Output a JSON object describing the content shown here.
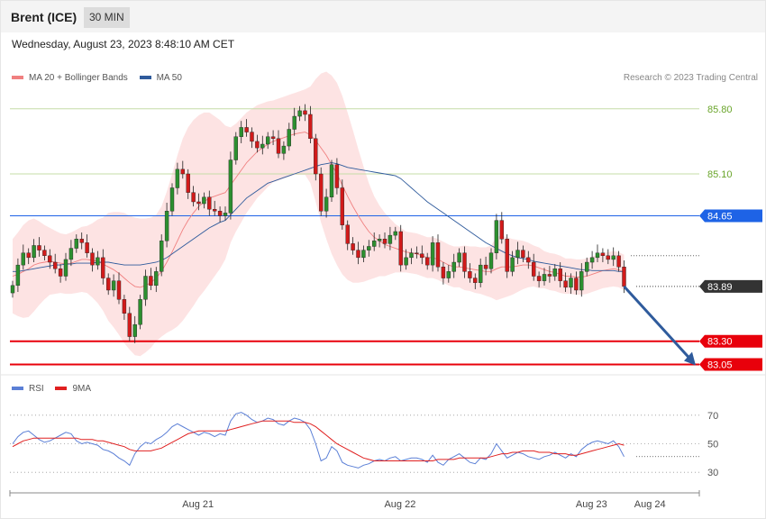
{
  "header": {
    "title": "Brent (ICE)",
    "timeframe": "30 MIN"
  },
  "datetime": "Wednesday, August 23, 2023 8:48:10 AM CET",
  "legend": {
    "items": [
      {
        "label": "MA 20 + Bollinger Bands",
        "color": "#f08080"
      },
      {
        "label": "MA 50",
        "color": "#2f5b9c"
      }
    ]
  },
  "credit": "Research © 2023 Trading Central",
  "rsi_legend": {
    "items": [
      {
        "label": "RSI",
        "color": "#5b7fd6"
      },
      {
        "label": "9MA",
        "color": "#e02020"
      }
    ]
  },
  "chart_data": [
    {
      "type": "candlestick",
      "ylim": [
        82.9,
        86.05
      ],
      "x_ticks": [
        {
          "label": "Aug 21",
          "index": 33
        },
        {
          "label": "Aug 22",
          "index": 71
        },
        {
          "label": "Aug 23",
          "index": 107
        },
        {
          "label": "Aug 24",
          "index": 118
        }
      ],
      "levels": [
        {
          "value": 85.8,
          "label": "85.80",
          "color": "#6aa52b",
          "line": "#c5dca7",
          "style": "text"
        },
        {
          "value": 85.1,
          "label": "85.10",
          "color": "#6aa52b",
          "line": "#c5dca7",
          "style": "text"
        },
        {
          "value": 84.65,
          "label": "84.65",
          "color": "#1e63e6",
          "line": "#1e63e6",
          "style": "badge"
        },
        {
          "value": 83.89,
          "label": "83.89",
          "color": "#333333",
          "line": "#555555",
          "style": "badge-dark"
        },
        {
          "value": 83.3,
          "label": "83.30",
          "color": "#e8000b",
          "line": "#e8000b",
          "style": "badge"
        },
        {
          "value": 83.05,
          "label": "83.05",
          "color": "#e8000b",
          "line": "#e8000b",
          "style": "badge"
        }
      ],
      "closes": [
        83.9,
        84.12,
        84.25,
        84.2,
        84.33,
        84.28,
        84.22,
        84.15,
        84.08,
        84.0,
        84.18,
        84.3,
        84.4,
        84.36,
        84.25,
        84.12,
        84.2,
        83.98,
        83.85,
        83.95,
        83.75,
        83.6,
        83.35,
        83.48,
        83.75,
        84.0,
        83.9,
        84.05,
        84.38,
        84.7,
        84.95,
        85.15,
        85.1,
        84.9,
        84.8,
        84.78,
        84.85,
        84.72,
        84.7,
        84.65,
        84.68,
        85.25,
        85.5,
        85.6,
        85.55,
        85.45,
        85.38,
        85.42,
        85.5,
        85.48,
        85.32,
        85.4,
        85.58,
        85.72,
        85.78,
        85.74,
        85.48,
        85.1,
        84.7,
        84.85,
        85.2,
        84.95,
        84.55,
        84.35,
        84.28,
        84.2,
        84.28,
        84.32,
        84.38,
        84.4,
        84.35,
        84.44,
        84.48,
        84.12,
        84.2,
        84.25,
        84.24,
        84.2,
        84.12,
        84.36,
        84.1,
        83.98,
        84.05,
        84.15,
        84.25,
        84.05,
        83.98,
        83.93,
        84.12,
        84.08,
        84.25,
        84.6,
        84.4,
        84.05,
        84.2,
        84.28,
        84.2,
        84.15,
        84.0,
        83.95,
        84.02,
        84.0,
        84.08,
        83.95,
        83.88,
        83.98,
        83.85,
        84.05,
        84.15,
        84.2,
        84.25,
        84.22,
        84.18,
        84.22,
        84.1,
        83.89
      ],
      "bb_mid": [
        84.0,
        84.02,
        84.05,
        84.08,
        84.12,
        84.14,
        84.15,
        84.16,
        84.15,
        84.14,
        84.13,
        84.14,
        84.16,
        84.18,
        84.18,
        84.17,
        84.16,
        84.13,
        84.1,
        84.07,
        84.03,
        83.98,
        83.93,
        83.89,
        83.88,
        83.9,
        83.93,
        83.98,
        84.05,
        84.15,
        84.26,
        84.38,
        84.5,
        84.6,
        84.68,
        84.75,
        84.8,
        84.84,
        84.86,
        84.88,
        84.9,
        84.98,
        85.06,
        85.14,
        85.22,
        85.28,
        85.34,
        85.38,
        85.42,
        85.45,
        85.47,
        85.49,
        85.51,
        85.53,
        85.54,
        85.55,
        85.52,
        85.46,
        85.38,
        85.3,
        85.2,
        85.1,
        84.98,
        84.86,
        84.75,
        84.65,
        84.56,
        84.48,
        84.42,
        84.38,
        84.34,
        84.32,
        84.3,
        84.28,
        84.26,
        84.25,
        84.24,
        84.22,
        84.2,
        84.2,
        84.18,
        84.15,
        84.12,
        84.1,
        84.1,
        84.09,
        84.08,
        84.07,
        84.06,
        84.05,
        84.05,
        84.08,
        84.1,
        84.1,
        84.1,
        84.11,
        84.12,
        84.12,
        84.11,
        84.09,
        84.07,
        84.05,
        84.04,
        84.02,
        84.0,
        84.0,
        83.99,
        83.99,
        84.0,
        84.02,
        84.04,
        84.06,
        84.07,
        84.08,
        84.07,
        84.04
      ],
      "bb_halfwidth": [
        0.4,
        0.45,
        0.5,
        0.52,
        0.5,
        0.45,
        0.4,
        0.36,
        0.34,
        0.32,
        0.32,
        0.33,
        0.34,
        0.35,
        0.36,
        0.4,
        0.45,
        0.5,
        0.58,
        0.62,
        0.66,
        0.7,
        0.72,
        0.74,
        0.74,
        0.72,
        0.7,
        0.68,
        0.7,
        0.76,
        0.84,
        0.92,
        0.98,
        1.0,
        1.0,
        0.98,
        0.96,
        0.92,
        0.86,
        0.8,
        0.72,
        0.62,
        0.58,
        0.56,
        0.54,
        0.52,
        0.5,
        0.48,
        0.46,
        0.44,
        0.44,
        0.44,
        0.44,
        0.44,
        0.45,
        0.46,
        0.52,
        0.66,
        0.8,
        0.9,
        0.96,
        0.98,
        0.96,
        0.9,
        0.82,
        0.72,
        0.62,
        0.52,
        0.44,
        0.38,
        0.34,
        0.3,
        0.26,
        0.24,
        0.22,
        0.22,
        0.22,
        0.22,
        0.22,
        0.22,
        0.22,
        0.22,
        0.22,
        0.22,
        0.22,
        0.24,
        0.24,
        0.25,
        0.25,
        0.26,
        0.28,
        0.34,
        0.34,
        0.32,
        0.3,
        0.28,
        0.26,
        0.24,
        0.22,
        0.22,
        0.2,
        0.2,
        0.2,
        0.2,
        0.19,
        0.19,
        0.19,
        0.19,
        0.19,
        0.19,
        0.19,
        0.19,
        0.19,
        0.19,
        0.19,
        0.19
      ],
      "ma50": [
        84.05,
        84.05,
        84.06,
        84.07,
        84.08,
        84.09,
        84.1,
        84.11,
        84.12,
        84.12,
        84.13,
        84.13,
        84.14,
        84.14,
        84.14,
        84.14,
        84.15,
        84.15,
        84.15,
        84.14,
        84.13,
        84.12,
        84.12,
        84.12,
        84.12,
        84.13,
        84.14,
        84.15,
        84.17,
        84.2,
        84.24,
        84.28,
        84.32,
        84.36,
        84.4,
        84.44,
        84.48,
        84.52,
        84.55,
        84.58,
        84.6,
        84.66,
        84.72,
        84.78,
        84.84,
        84.88,
        84.92,
        84.96,
        85.0,
        85.02,
        85.04,
        85.06,
        85.08,
        85.1,
        85.12,
        85.14,
        85.16,
        85.18,
        85.2,
        85.21,
        85.22,
        85.21,
        85.19,
        85.17,
        85.16,
        85.15,
        85.14,
        85.13,
        85.12,
        85.11,
        85.1,
        85.09,
        85.08,
        85.05,
        85.0,
        84.95,
        84.9,
        84.85,
        84.8,
        84.76,
        84.72,
        84.68,
        84.64,
        84.6,
        84.56,
        84.52,
        84.48,
        84.44,
        84.4,
        84.36,
        84.33,
        84.3,
        84.27,
        84.24,
        84.22,
        84.2,
        84.19,
        84.18,
        84.16,
        84.15,
        84.14,
        84.13,
        84.12,
        84.11,
        84.1,
        84.09,
        84.08,
        84.07,
        84.07,
        84.06,
        84.06,
        84.06,
        84.06,
        84.06,
        84.05,
        84.05
      ],
      "forecast_arrow": {
        "from_index": 115,
        "from_value": 83.89,
        "to_index": 127,
        "to_value": 83.05
      }
    },
    {
      "type": "line",
      "ylim": [
        20,
        80
      ],
      "reference_levels": [
        {
          "value": 70,
          "label": "70"
        },
        {
          "value": 50,
          "label": "50"
        },
        {
          "value": 30,
          "label": "30"
        }
      ],
      "series": [
        {
          "name": "RSI",
          "color": "#5b7fd6",
          "values": [
            50,
            55,
            58,
            59,
            56,
            53,
            51,
            52,
            54,
            56,
            58,
            57,
            52,
            50,
            51,
            50,
            49,
            46,
            45,
            43,
            40,
            38,
            35,
            43,
            48,
            51,
            50,
            53,
            55,
            58,
            62,
            64,
            62,
            60,
            58,
            56,
            58,
            57,
            55,
            57,
            56,
            66,
            71,
            72,
            70,
            67,
            65,
            66,
            68,
            67,
            64,
            63,
            66,
            68,
            67,
            65,
            60,
            50,
            38,
            40,
            48,
            45,
            37,
            35,
            34,
            33,
            35,
            36,
            38,
            39,
            38,
            40,
            41,
            38,
            39,
            40,
            40,
            39,
            37,
            42,
            37,
            35,
            39,
            41,
            43,
            40,
            37,
            36,
            40,
            39,
            43,
            50,
            45,
            40,
            42,
            44,
            43,
            41,
            40,
            39,
            41,
            42,
            44,
            42,
            40,
            43,
            41,
            46,
            49,
            51,
            52,
            51,
            50,
            52,
            48,
            41
          ]
        },
        {
          "name": "9MA",
          "color": "#e02020",
          "values": [
            48,
            50,
            52,
            53,
            54,
            54,
            54,
            54,
            54,
            54,
            54,
            54,
            54,
            53,
            53,
            53,
            52,
            52,
            51,
            50,
            49,
            48,
            46,
            45,
            45,
            45,
            45,
            46,
            47,
            49,
            51,
            53,
            55,
            57,
            58,
            59,
            59,
            59,
            59,
            59,
            59,
            60,
            61,
            62,
            63,
            64,
            65,
            66,
            66,
            66,
            66,
            66,
            66,
            65,
            65,
            65,
            64,
            62,
            59,
            56,
            53,
            50,
            48,
            46,
            44,
            42,
            40,
            39,
            38,
            38,
            38,
            38,
            38,
            38,
            38,
            38,
            38,
            38,
            38,
            38,
            39,
            39,
            39,
            39,
            40,
            40,
            40,
            40,
            40,
            40,
            41,
            42,
            43,
            43,
            44,
            44,
            45,
            45,
            45,
            44,
            44,
            44,
            43,
            43,
            43,
            42,
            42,
            43,
            44,
            45,
            46,
            47,
            48,
            49,
            50,
            49
          ]
        }
      ]
    }
  ]
}
